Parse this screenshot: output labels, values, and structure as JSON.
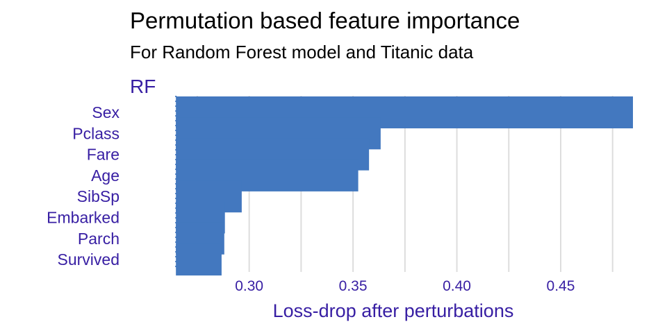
{
  "chart_data": {
    "type": "bar",
    "orientation": "horizontal",
    "title": "Permutation based feature importance",
    "subtitle": "For Random Forest model and Titanic data",
    "facet_label": "RF",
    "xlabel": "Loss-drop after perturbations",
    "categories": [
      "Sex",
      "Pclass",
      "Fare",
      "Age",
      "SibSp",
      "Embarked",
      "Parch",
      "Survived"
    ],
    "values": [
      0.4848,
      0.3633,
      0.3577,
      0.3525,
      0.2964,
      0.2883,
      0.288,
      0.2867
    ],
    "baseline": 0.2647,
    "xlim": [
      0.2536,
      0.4848
    ],
    "xticks": [
      "0.30",
      "0.35",
      "0.40",
      "0.45"
    ],
    "grid": true,
    "colors": {
      "bar": "#4378BF",
      "text": "#371EA3",
      "grid": "#DDDDDD",
      "baseline": "#4378BF"
    }
  }
}
